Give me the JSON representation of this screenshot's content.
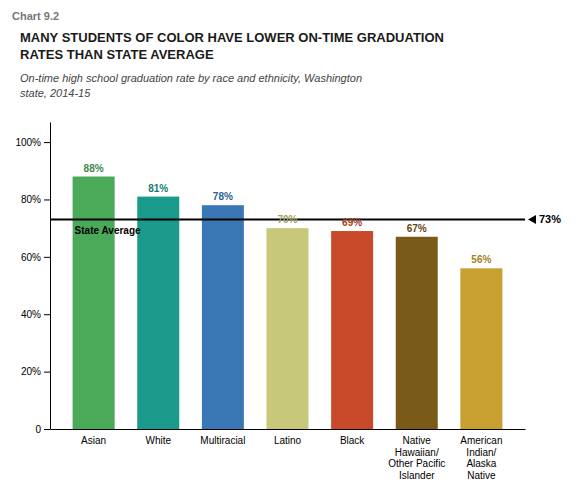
{
  "chart_data": {
    "type": "bar",
    "title": "MANY STUDENTS OF COLOR HAVE LOWER ON-TIME GRADUATION\nRATES THAN STATE AVERAGE",
    "subtitle": "On-time high school graduation rate by race and ethnicity, Washington\nstate, 2014-15",
    "annotations": [
      {
        "text": "Chart 9.2"
      }
    ],
    "categories": [
      "Asian",
      "White",
      "Multiracial",
      "Latino",
      "Black",
      "Native Hawaiian/\nOther Pacific Islander",
      "American Indian/\nAlaska Native"
    ],
    "values": [
      88,
      81,
      78,
      70,
      69,
      67,
      56
    ],
    "value_labels": [
      "88%",
      "81%",
      "78%",
      "70%",
      "69%",
      "67%",
      "56%"
    ],
    "colors": [
      "#4aaa5a",
      "#1a9a8a",
      "#3a78b5",
      "#c8c87a",
      "#c84a2a",
      "#7a5a18",
      "#c8a030"
    ],
    "data_labels": true,
    "state_average": {
      "value": 73,
      "label": "State Average",
      "value_label": "73%"
    },
    "ylim": [
      0,
      107
    ],
    "yticks": [
      0,
      {
        "value": 20,
        "label": "20%"
      },
      {
        "value": 40,
        "label": "40%"
      },
      {
        "value": 60,
        "label": "60%"
      },
      {
        "value": 80,
        "label": "80%"
      },
      {
        "value": 100,
        "label": "100%"
      }
    ],
    "grid": false
  }
}
